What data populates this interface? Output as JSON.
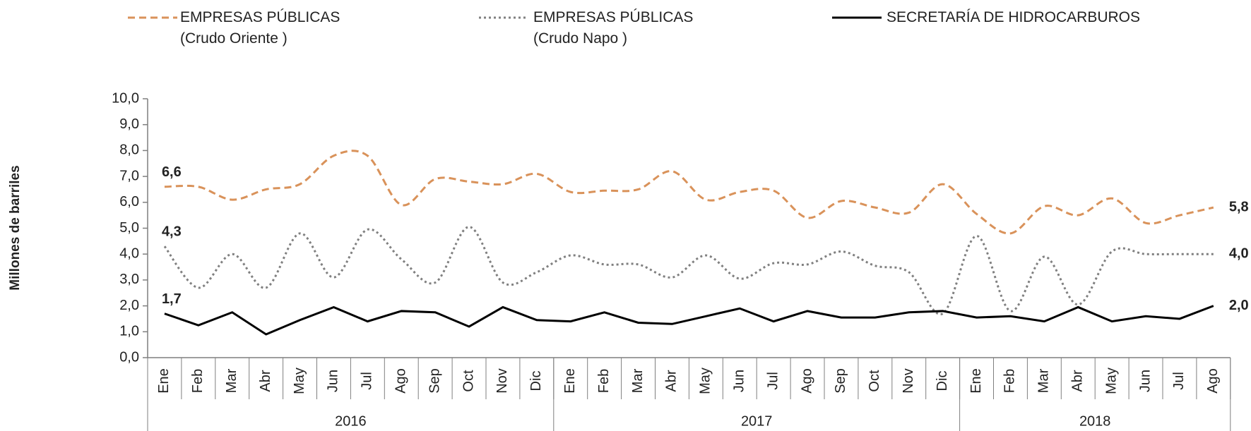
{
  "chart_data": {
    "type": "line",
    "y_label": "Millones de barriles",
    "categories": [
      "Ene",
      "Feb",
      "Mar",
      "Abr",
      "May",
      "Jun",
      "Jul",
      "Ago",
      "Sep",
      "Oct",
      "Nov",
      "Dic",
      "Ene",
      "Feb",
      "Mar",
      "Abr",
      "May",
      "Jun",
      "Jul",
      "Ago",
      "Sep",
      "Oct",
      "Nov",
      "Dic",
      "Ene",
      "Feb",
      "Mar",
      "Abr",
      "May",
      "Jun",
      "Jul",
      "Ago"
    ],
    "groups": [
      {
        "label": "2016",
        "span": 12
      },
      {
        "label": "2017",
        "span": 12
      },
      {
        "label": "2018",
        "span": 8
      }
    ],
    "series": [
      {
        "name": "EMPRESAS PÚBLICAS\n(Crudo Oriente )",
        "color": "#d9925a",
        "dash": "dashed",
        "smooth": true,
        "values": [
          6.6,
          6.6,
          6.1,
          6.5,
          6.7,
          7.8,
          7.8,
          5.9,
          6.9,
          6.8,
          6.7,
          7.1,
          6.4,
          6.45,
          6.5,
          7.2,
          6.1,
          6.4,
          6.45,
          5.4,
          6.05,
          5.8,
          5.6,
          6.7,
          5.55,
          4.8,
          5.85,
          5.5,
          6.15,
          5.2,
          5.5,
          5.8
        ],
        "value_labels": [
          "6,6",
          null,
          null,
          null,
          null,
          null,
          null,
          null,
          null,
          null,
          null,
          null,
          null,
          null,
          null,
          null,
          null,
          null,
          null,
          null,
          null,
          null,
          null,
          null,
          null,
          null,
          null,
          null,
          null,
          null,
          null,
          "5,8"
        ]
      },
      {
        "name": "EMPRESAS PÚBLICAS\n(Crudo Napo )",
        "color": "#808080",
        "dash": "dotted",
        "smooth": true,
        "values": [
          4.3,
          2.7,
          4.0,
          2.7,
          4.8,
          3.1,
          4.95,
          3.8,
          2.9,
          5.05,
          2.9,
          3.3,
          3.95,
          3.6,
          3.6,
          3.1,
          3.95,
          3.05,
          3.65,
          3.6,
          4.1,
          3.55,
          3.3,
          1.7,
          4.7,
          1.8,
          3.9,
          2.05,
          4.1,
          4.0,
          4.0,
          4.0
        ],
        "value_labels": [
          "4,3",
          null,
          null,
          null,
          null,
          null,
          null,
          null,
          null,
          null,
          null,
          null,
          null,
          null,
          null,
          null,
          null,
          null,
          null,
          null,
          null,
          null,
          null,
          null,
          null,
          null,
          null,
          null,
          null,
          null,
          null,
          "4,0"
        ]
      },
      {
        "name": "SECRETARÍA DE HIDROCARBUROS",
        "color": "#000000",
        "dash": "solid",
        "smooth": false,
        "values": [
          1.7,
          1.25,
          1.75,
          0.9,
          1.45,
          1.95,
          1.4,
          1.8,
          1.75,
          1.2,
          1.95,
          1.45,
          1.4,
          1.75,
          1.35,
          1.3,
          1.6,
          1.9,
          1.4,
          1.8,
          1.55,
          1.55,
          1.75,
          1.8,
          1.55,
          1.6,
          1.4,
          1.95,
          1.4,
          1.6,
          1.5,
          2.0
        ],
        "value_labels": [
          "1,7",
          null,
          null,
          null,
          null,
          null,
          null,
          null,
          null,
          null,
          null,
          null,
          null,
          null,
          null,
          null,
          null,
          null,
          null,
          null,
          null,
          null,
          null,
          null,
          null,
          null,
          null,
          null,
          null,
          null,
          null,
          "2,0"
        ]
      }
    ],
    "ylim": [
      0,
      10
    ],
    "yticks": [
      {
        "value": 0,
        "label": "0,0"
      },
      {
        "value": 1,
        "label": "1,0"
      },
      {
        "value": 2,
        "label": "2,0"
      },
      {
        "value": 3,
        "label": "3,0"
      },
      {
        "value": 4,
        "label": "4,0"
      },
      {
        "value": 5,
        "label": "5,0"
      },
      {
        "value": 6,
        "label": "6,0"
      },
      {
        "value": 7,
        "label": "7,0"
      },
      {
        "value": 8,
        "label": "8,0"
      },
      {
        "value": 9,
        "label": "9,0"
      },
      {
        "value": 10,
        "label": "10,0"
      }
    ],
    "grid": false,
    "legend": "top"
  }
}
